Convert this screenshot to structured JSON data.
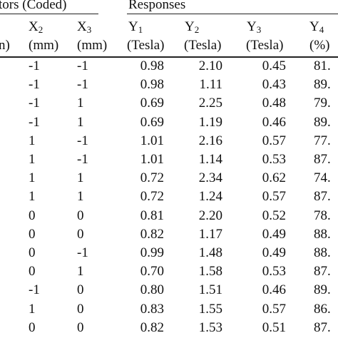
{
  "header": {
    "group_factors": "tors (Coded)",
    "group_responses": "Responses",
    "unit_partial": "n)",
    "columns": [
      {
        "symbol": "X",
        "sub": "2",
        "unit": "(mm)"
      },
      {
        "symbol": "X",
        "sub": "3",
        "unit": "(mm)"
      },
      {
        "symbol": "Y",
        "sub": "1",
        "unit": "(Tesla)"
      },
      {
        "symbol": "Y",
        "sub": "2",
        "unit": "(Tesla)"
      },
      {
        "symbol": "Y",
        "sub": "3",
        "unit": "(Tesla)"
      },
      {
        "symbol": "Y",
        "sub": "4",
        "unit": "(%)"
      }
    ]
  },
  "rows": [
    [
      "-1",
      "-1",
      "0.98",
      "2.10",
      "0.45",
      "81."
    ],
    [
      "-1",
      "-1",
      "0.98",
      "1.11",
      "0.43",
      "89."
    ],
    [
      "-1",
      "1",
      "0.69",
      "2.25",
      "0.48",
      "79."
    ],
    [
      "-1",
      "1",
      "0.69",
      "1.19",
      "0.46",
      "89."
    ],
    [
      "1",
      "-1",
      "1.01",
      "2.16",
      "0.57",
      "77."
    ],
    [
      "1",
      "-1",
      "1.01",
      "1.14",
      "0.53",
      "87."
    ],
    [
      "1",
      "1",
      "0.72",
      "2.34",
      "0.62",
      "74."
    ],
    [
      "1",
      "1",
      "0.72",
      "1.24",
      "0.57",
      "87."
    ],
    [
      "0",
      "0",
      "0.81",
      "2.20",
      "0.52",
      "78."
    ],
    [
      "0",
      "0",
      "0.82",
      "1.17",
      "0.49",
      "88."
    ],
    [
      "0",
      "-1",
      "0.99",
      "1.48",
      "0.49",
      "88."
    ],
    [
      "0",
      "1",
      "0.70",
      "1.58",
      "0.53",
      "87."
    ],
    [
      "-1",
      "0",
      "0.80",
      "1.51",
      "0.46",
      "89."
    ],
    [
      "1",
      "0",
      "0.83",
      "1.55",
      "0.57",
      "86."
    ],
    [
      "0",
      "0",
      "0.82",
      "1.53",
      "0.51",
      "87."
    ]
  ]
}
